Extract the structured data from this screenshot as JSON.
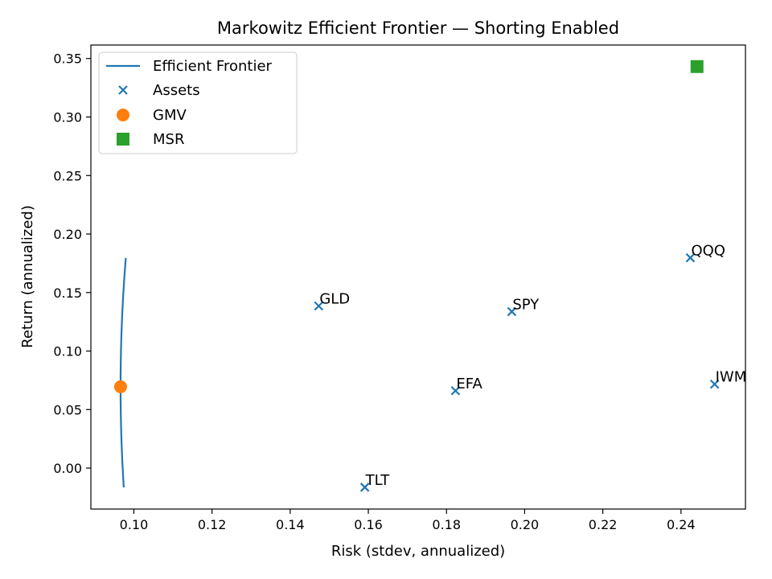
{
  "chart_data": {
    "type": "scatter",
    "title": "Markowitz Efficient Frontier — Shorting Enabled",
    "xlabel": "Risk (stdev, annualized)",
    "ylabel": "Return (annualized)",
    "xlim": [
      0.089,
      0.2565
    ],
    "ylim": [
      -0.035,
      0.3615
    ],
    "xticks": [
      0.1,
      0.12,
      0.14,
      0.16,
      0.18,
      0.2,
      0.22,
      0.24
    ],
    "xtick_labels": [
      "0.10",
      "0.12",
      "0.14",
      "0.16",
      "0.18",
      "0.20",
      "0.22",
      "0.24"
    ],
    "yticks": [
      0.0,
      0.05,
      0.1,
      0.15,
      0.2,
      0.25,
      0.3,
      0.35
    ],
    "ytick_labels": [
      "0.00",
      "0.05",
      "0.10",
      "0.15",
      "0.20",
      "0.25",
      "0.30",
      "0.35"
    ],
    "grid": false,
    "legend_position": "top-left",
    "legend": [
      "Efficient Frontier",
      "Assets",
      "GMV",
      "MSR"
    ],
    "frontier": {
      "name": "Efficient Frontier",
      "color": "#1f77b4",
      "gmv_risk": 0.0966,
      "gmv_return": 0.0695,
      "curvature": 0.0215,
      "return_range": [
        -0.0165,
        0.1795
      ]
    },
    "assets": [
      {
        "name": "GLD",
        "x": 0.1473,
        "y": 0.1385
      },
      {
        "name": "SPY",
        "x": 0.1967,
        "y": 0.1337
      },
      {
        "name": "QQQ",
        "x": 0.2424,
        "y": 0.1797
      },
      {
        "name": "EFA",
        "x": 0.1823,
        "y": 0.0661
      },
      {
        "name": "IWM",
        "x": 0.2486,
        "y": 0.0717
      },
      {
        "name": "TLT",
        "x": 0.1591,
        "y": -0.0164
      }
    ],
    "gmv": {
      "name": "GMV",
      "x": 0.0966,
      "y": 0.0695,
      "color": "#ff7f0e"
    },
    "msr": {
      "name": "MSR",
      "x": 0.2441,
      "y": 0.3431,
      "color": "#2ca02c"
    },
    "asset_color": "#1f77b4"
  }
}
